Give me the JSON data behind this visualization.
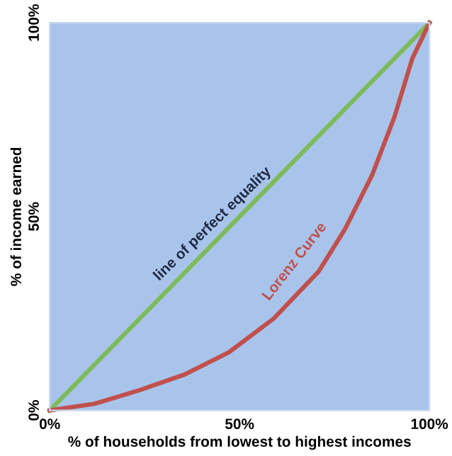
{
  "chart_data": {
    "type": "line",
    "xlabel": "% of households from lowest to highest incomes",
    "ylabel": "% of income earned",
    "xlim": [
      0,
      100
    ],
    "ylim": [
      0,
      100
    ],
    "xticks": [
      {
        "value": 0,
        "label": "0%"
      },
      {
        "value": 50,
        "label": "50%"
      },
      {
        "value": 100,
        "label": "100%"
      }
    ],
    "yticks": [
      {
        "value": 0,
        "label": "0%"
      },
      {
        "value": 50,
        "label": "50%"
      },
      {
        "value": 100,
        "label": "100%"
      }
    ],
    "series": [
      {
        "color": "#7dba5a",
        "x": [
          0,
          100
        ],
        "values": [
          0,
          100
        ]
      },
      {
        "color": "#c0504d",
        "x": [
          0,
          11.8,
          23.6,
          35.4,
          47.2,
          59,
          70.8,
          77.8,
          84.9,
          90.8,
          95.5,
          100
        ],
        "values": [
          0,
          1.7,
          5.2,
          9.2,
          15,
          23.7,
          35.8,
          46.8,
          60.7,
          75.7,
          90.8,
          100
        ]
      }
    ],
    "annotations": [
      {
        "text": "line of perfect equality",
        "x": 45,
        "y": 45
      },
      {
        "text": "Lorenz Curve",
        "x": 70.8,
        "y": 35.8
      }
    ],
    "grid": false,
    "legend": false,
    "marker": "none",
    "line_style": "solid"
  }
}
